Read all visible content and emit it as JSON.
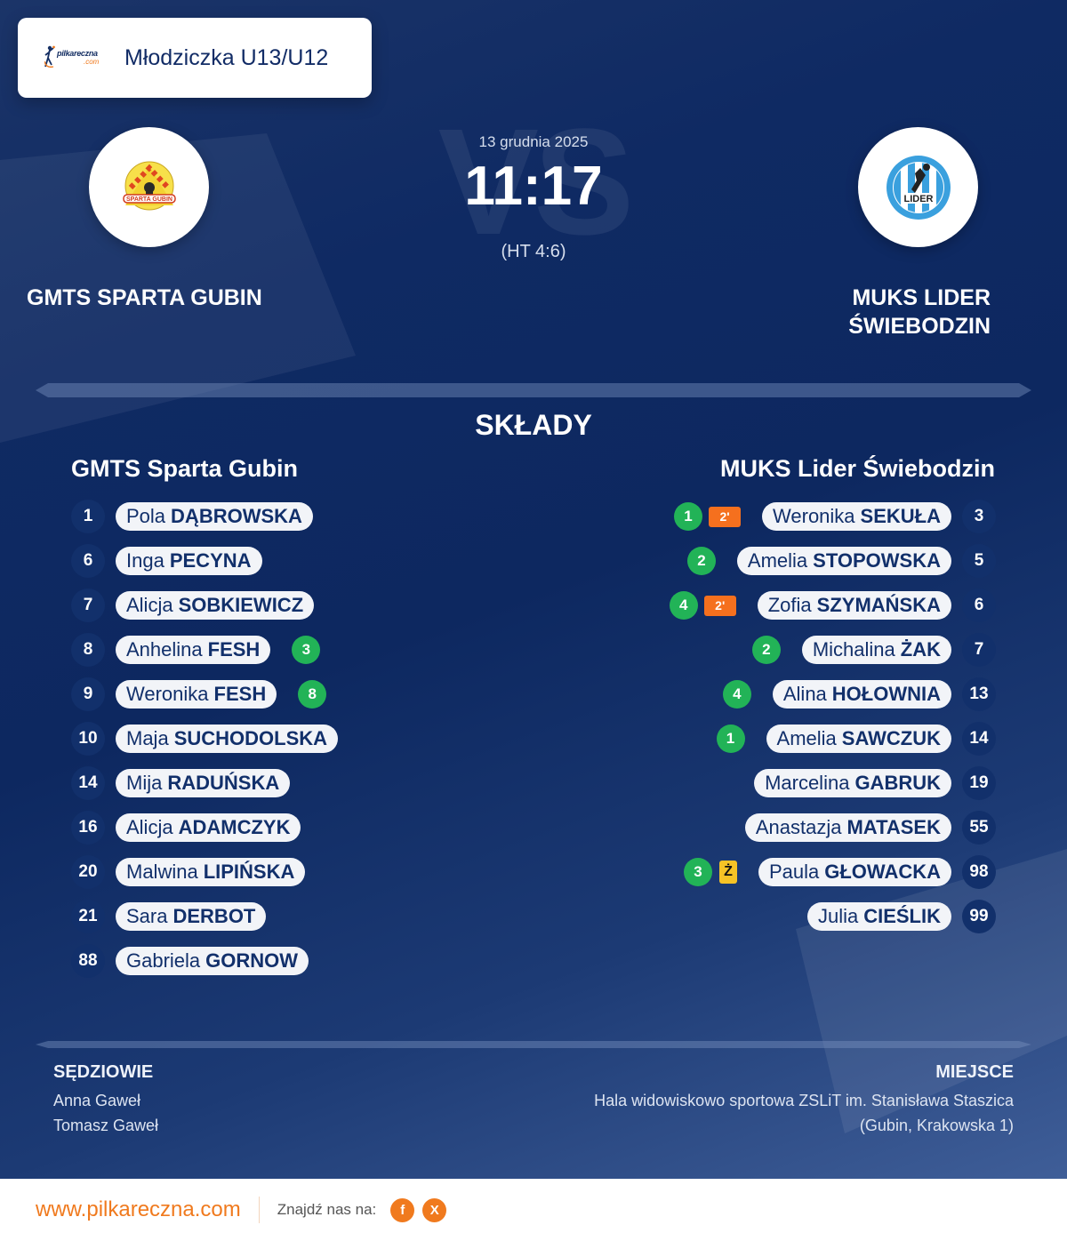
{
  "header": {
    "brand_logo_text": "pilkareczna",
    "brand_logo_suffix": ".com",
    "league": "Młodziczka U13/U12"
  },
  "match": {
    "date": "13 grudnia 2025",
    "score": "11:17",
    "half_time": "(HT 4:6)",
    "vs_watermark": "VS"
  },
  "home_team": {
    "name_upper": "GMTS SPARTA GUBIN",
    "name": "GMTS Sparta Gubin",
    "logo_text": "SPARTA GUBIN"
  },
  "away_team": {
    "name_upper_line1": "MUKS LIDER",
    "name_upper_line2": "ŚWIEBODZIN",
    "name": "MUKS Lider Świebodzin",
    "logo_text": "LIDER"
  },
  "lineups": {
    "title": "SKŁADY",
    "home": [
      {
        "number": "1",
        "first": "Pola",
        "last": "DĄBROWSKA",
        "goals": null
      },
      {
        "number": "6",
        "first": "Inga",
        "last": "PECYNA",
        "goals": null
      },
      {
        "number": "7",
        "first": "Alicja",
        "last": "SOBKIEWICZ",
        "goals": null
      },
      {
        "number": "8",
        "first": "Anhelina",
        "last": "FESH",
        "goals": "3"
      },
      {
        "number": "9",
        "first": "Weronika",
        "last": "FESH",
        "goals": "8"
      },
      {
        "number": "10",
        "first": "Maja",
        "last": "SUCHODOLSKA",
        "goals": null
      },
      {
        "number": "14",
        "first": "Mija",
        "last": "RADUŃSKA",
        "goals": null
      },
      {
        "number": "16",
        "first": "Alicja",
        "last": "ADAMCZYK",
        "goals": null
      },
      {
        "number": "20",
        "first": "Malwina",
        "last": "LIPIŃSKA",
        "goals": null
      },
      {
        "number": "21",
        "first": "Sara",
        "last": "DERBOT",
        "goals": null
      },
      {
        "number": "88",
        "first": "Gabriela",
        "last": "GORNOW",
        "goals": null
      }
    ],
    "away": [
      {
        "number": "3",
        "first": "Weronika",
        "last": "SEKUŁA",
        "goals": "1",
        "penalty": "2'",
        "card": null
      },
      {
        "number": "5",
        "first": "Amelia",
        "last": "STOPOWSKA",
        "goals": "2",
        "penalty": null,
        "card": null
      },
      {
        "number": "6",
        "first": "Zofia",
        "last": "SZYMAŃSKA",
        "goals": "4",
        "penalty": "2'",
        "card": null
      },
      {
        "number": "7",
        "first": "Michalina",
        "last": "ŻAK",
        "goals": "2",
        "penalty": null,
        "card": null
      },
      {
        "number": "13",
        "first": "Alina",
        "last": "HOŁOWNIA",
        "goals": "4",
        "penalty": null,
        "card": null
      },
      {
        "number": "14",
        "first": "Amelia",
        "last": "SAWCZUK",
        "goals": "1",
        "penalty": null,
        "card": null
      },
      {
        "number": "19",
        "first": "Marcelina",
        "last": "GABRUK",
        "goals": null,
        "penalty": null,
        "card": null
      },
      {
        "number": "55",
        "first": "Anastazja",
        "last": "MATASEK",
        "goals": null,
        "penalty": null,
        "card": null
      },
      {
        "number": "98",
        "first": "Paula",
        "last": "GŁOWACKA",
        "goals": "3",
        "penalty": null,
        "card": "Ż"
      },
      {
        "number": "99",
        "first": "Julia",
        "last": "CIEŚLIK",
        "goals": null,
        "penalty": null,
        "card": null
      }
    ]
  },
  "referees": {
    "title": "SĘDZIOWIE",
    "names": [
      "Anna Gaweł",
      "Tomasz Gaweł"
    ]
  },
  "venue": {
    "title": "MIEJSCE",
    "line1": "Hala widowiskowo sportowa ZSLiT im. Stanisława Staszica",
    "line2": "(Gubin, Krakowska 1)"
  },
  "footer": {
    "url": "www.pilkareczna.com",
    "find_us": "Znajdź nas na:",
    "social": [
      {
        "icon": "facebook-icon",
        "glyph": "f"
      },
      {
        "icon": "x-icon",
        "glyph": "X"
      }
    ]
  },
  "colors": {
    "navy": "#12306b",
    "goal_green": "#22b357",
    "suspension_orange": "#f5701e",
    "yellow_card": "#f6c326",
    "brand_orange": "#f07a1e"
  }
}
